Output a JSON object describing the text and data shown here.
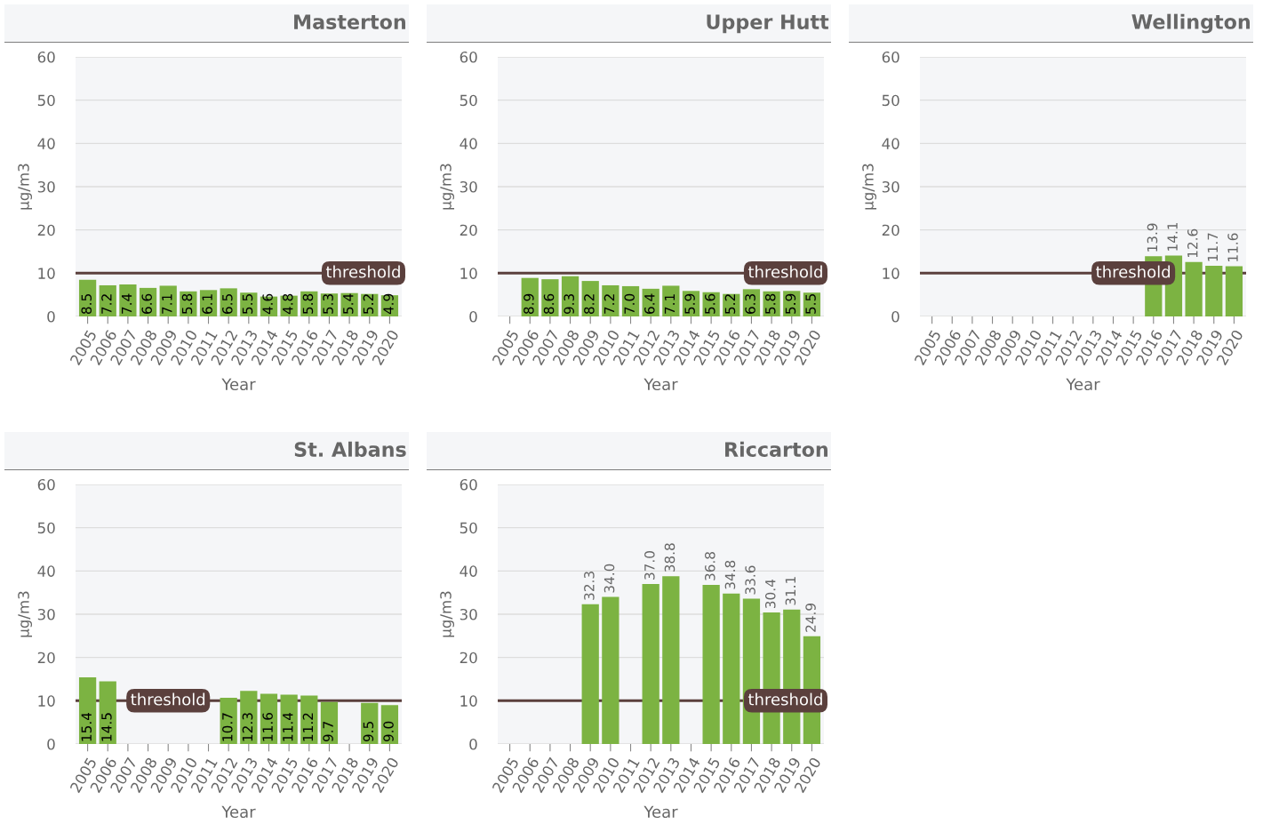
{
  "chart_data": [
    {
      "type": "bar",
      "title": "Masterton",
      "xlabel": "Year",
      "ylabel": "µg/m3",
      "categories": [
        "2005",
        "2006",
        "2007",
        "2008",
        "2009",
        "2010",
        "2011",
        "2012",
        "2013",
        "2014",
        "2015",
        "2016",
        "2017",
        "2018",
        "2019",
        "2020"
      ],
      "values": [
        8.5,
        7.2,
        7.4,
        6.6,
        7.1,
        5.8,
        6.1,
        6.5,
        5.5,
        4.6,
        4.8,
        5.8,
        5.3,
        5.4,
        5.2,
        4.9
      ],
      "value_labels": [
        "8.5",
        "7.2",
        "7.4",
        "6.6",
        "7.1",
        "5.8",
        "6.1",
        "6.5",
        "5.5",
        "4.6",
        "4.8",
        "5.8",
        "5.3",
        "5.4",
        "5.2",
        "4.9"
      ],
      "color": "#7cb342",
      "ylim": [
        0,
        60
      ],
      "yticks": [
        0,
        10,
        20,
        30,
        40,
        50,
        60
      ],
      "grid": "y",
      "ref_lines": [
        {
          "axis": "y",
          "value": 10,
          "label": "threshold",
          "color": "#5b403d"
        }
      ]
    },
    {
      "type": "bar",
      "title": "Upper Hutt",
      "xlabel": "Year",
      "ylabel": "µg/m3",
      "categories": [
        "2005",
        "2006",
        "2007",
        "2008",
        "2009",
        "2010",
        "2011",
        "2012",
        "2013",
        "2014",
        "2015",
        "2016",
        "2017",
        "2018",
        "2019",
        "2020"
      ],
      "values": [
        null,
        8.9,
        8.6,
        9.3,
        8.2,
        7.2,
        7.0,
        6.4,
        7.1,
        5.9,
        5.6,
        5.2,
        6.3,
        5.8,
        5.9,
        5.5
      ],
      "value_labels": [
        null,
        "8.9",
        "8.6",
        "9.3",
        "8.2",
        "7.2",
        "7.0",
        "6.4",
        "7.1",
        "5.9",
        "5.6",
        "5.2",
        "6.3",
        "5.8",
        "5.9",
        "5.5"
      ],
      "color": "#7cb342",
      "ylim": [
        0,
        60
      ],
      "yticks": [
        0,
        10,
        20,
        30,
        40,
        50,
        60
      ],
      "grid": "y",
      "ref_lines": [
        {
          "axis": "y",
          "value": 10,
          "label": "threshold",
          "color": "#5b403d"
        }
      ]
    },
    {
      "type": "bar",
      "title": "Wellington",
      "xlabel": "Year",
      "ylabel": "µg/m3",
      "categories": [
        "2005",
        "2006",
        "2007",
        "2008",
        "2009",
        "2010",
        "2011",
        "2012",
        "2013",
        "2014",
        "2015",
        "2016",
        "2017",
        "2018",
        "2019",
        "2020"
      ],
      "values": [
        null,
        null,
        null,
        null,
        null,
        null,
        null,
        null,
        null,
        null,
        null,
        13.9,
        14.1,
        12.6,
        11.7,
        11.6
      ],
      "value_labels": [
        null,
        null,
        null,
        null,
        null,
        null,
        null,
        null,
        null,
        null,
        null,
        "13.9",
        "14.1",
        "12.6",
        "11.7",
        "11.6"
      ],
      "color": "#7cb342",
      "ylim": [
        0,
        60
      ],
      "yticks": [
        0,
        10,
        20,
        30,
        40,
        50,
        60
      ],
      "grid": "y",
      "ref_lines": [
        {
          "axis": "y",
          "value": 10,
          "label": "threshold",
          "color": "#5b403d"
        }
      ]
    },
    {
      "type": "bar",
      "title": "St. Albans",
      "xlabel": "Year",
      "ylabel": "µg/m3",
      "categories": [
        "2005",
        "2006",
        "2007",
        "2008",
        "2009",
        "2010",
        "2011",
        "2012",
        "2013",
        "2014",
        "2015",
        "2016",
        "2017",
        "2018",
        "2019",
        "2020"
      ],
      "values": [
        15.4,
        14.5,
        null,
        null,
        null,
        null,
        null,
        10.7,
        12.3,
        11.6,
        11.4,
        11.2,
        9.7,
        null,
        9.5,
        9.0
      ],
      "value_labels": [
        "15.4",
        "14.5",
        null,
        null,
        null,
        null,
        null,
        "10.7",
        "12.3",
        "11.6",
        "11.4",
        "11.2",
        "9.7",
        null,
        "9.5",
        "9.0"
      ],
      "color": "#7cb342",
      "ylim": [
        0,
        60
      ],
      "yticks": [
        0,
        10,
        20,
        30,
        40,
        50,
        60
      ],
      "grid": "y",
      "ref_lines": [
        {
          "axis": "y",
          "value": 10,
          "label": "threshold",
          "color": "#5b403d"
        }
      ]
    },
    {
      "type": "bar",
      "title": "Riccarton",
      "xlabel": "Year",
      "ylabel": "µg/m3",
      "categories": [
        "2005",
        "2006",
        "2007",
        "2008",
        "2009",
        "2010",
        "2011",
        "2012",
        "2013",
        "2014",
        "2015",
        "2016",
        "2017",
        "2018",
        "2019",
        "2020"
      ],
      "values": [
        null,
        null,
        null,
        null,
        32.3,
        34.0,
        null,
        37.0,
        38.8,
        null,
        36.8,
        34.8,
        33.6,
        30.4,
        31.1,
        24.9
      ],
      "value_labels": [
        null,
        null,
        null,
        null,
        "32.3",
        "34.0",
        null,
        "37.0",
        "38.8",
        null,
        "36.8",
        "34.8",
        "33.6",
        "30.4",
        "31.1",
        "24.9"
      ],
      "color": "#7cb342",
      "ylim": [
        0,
        60
      ],
      "yticks": [
        0,
        10,
        20,
        30,
        40,
        50,
        60
      ],
      "grid": "y",
      "ref_lines": [
        {
          "axis": "y",
          "value": 10,
          "label": "threshold",
          "color": "#5b403d"
        }
      ]
    }
  ]
}
